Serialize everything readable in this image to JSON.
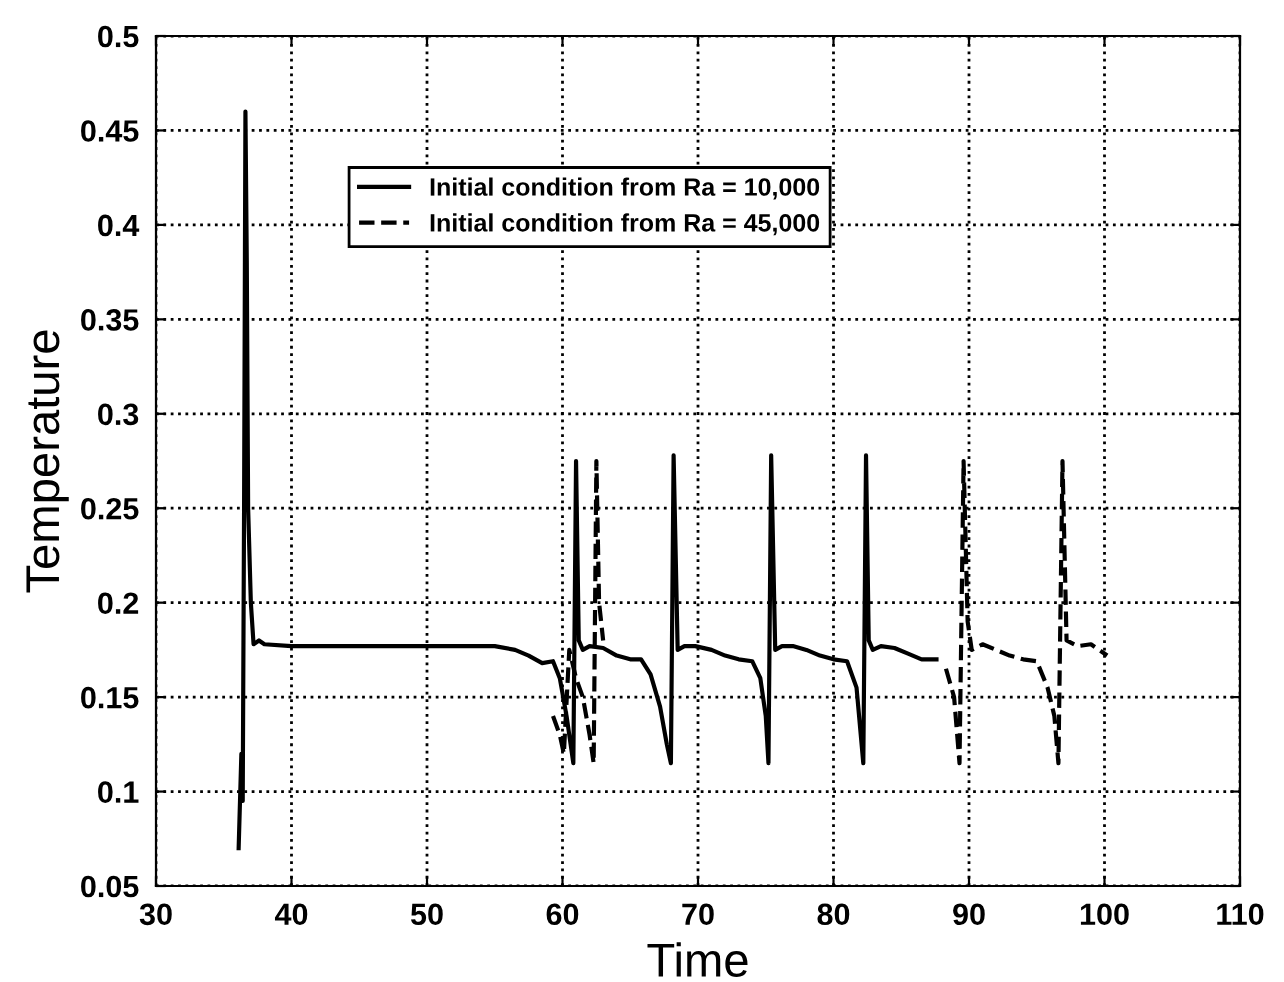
{
  "chart_data": {
    "type": "line",
    "xlabel": "Time",
    "ylabel": "Temperature",
    "xlim": [
      30,
      110
    ],
    "xticks": [
      30,
      40,
      50,
      60,
      70,
      80,
      90,
      100,
      110
    ],
    "ylim": [
      0.05,
      0.5
    ],
    "yticks": [
      0.05,
      0.1,
      0.15,
      0.2,
      0.25,
      0.3,
      0.35,
      0.4,
      0.45,
      0.5
    ],
    "grid": true,
    "legend": "top center",
    "marker": "none",
    "series": [
      {
        "name": "Initial condition from Ra = 10,000",
        "color": "#000000",
        "line_style": "solid",
        "x": [
          36.1,
          36.3,
          36.4,
          36.5,
          36.6,
          36.7,
          36.8,
          37.0,
          37.2,
          37.6,
          38.0,
          40,
          45,
          50,
          55,
          56.5,
          57.5,
          58.5,
          59.3,
          59.8,
          60.3,
          60.8,
          61.0,
          61.2,
          61.5,
          62.0,
          63.0,
          64.0,
          65.0,
          65.8,
          66.5,
          67.2,
          67.7,
          68.0,
          68.2,
          68.5,
          69.0,
          69.8,
          71.0,
          72.0,
          73.0,
          74.0,
          74.6,
          75.0,
          75.2,
          75.4,
          75.7,
          76.2,
          77.0,
          78.0,
          79.0,
          80.0,
          81.0,
          81.7,
          82.2,
          82.4,
          82.6,
          82.9,
          83.5,
          84.5,
          85.5,
          86.5,
          87.6
        ],
        "values": [
          0.07,
          0.12,
          0.095,
          0.25,
          0.46,
          0.38,
          0.25,
          0.2,
          0.178,
          0.18,
          0.178,
          0.177,
          0.177,
          0.177,
          0.177,
          0.175,
          0.172,
          0.168,
          0.169,
          0.16,
          0.14,
          0.115,
          0.275,
          0.18,
          0.175,
          0.177,
          0.176,
          0.172,
          0.17,
          0.17,
          0.162,
          0.145,
          0.125,
          0.115,
          0.278,
          0.175,
          0.177,
          0.177,
          0.175,
          0.172,
          0.17,
          0.169,
          0.16,
          0.14,
          0.115,
          0.278,
          0.175,
          0.177,
          0.177,
          0.175,
          0.172,
          0.17,
          0.169,
          0.155,
          0.115,
          0.278,
          0.18,
          0.175,
          0.177,
          0.176,
          0.173,
          0.17,
          0.17
        ]
      },
      {
        "name": "Initial condition from Ra = 45,000",
        "color": "#000000",
        "line_style": "dashed",
        "x": [
          59.3,
          59.8,
          60.1,
          60.5,
          61.0,
          61.5,
          62.0,
          62.3,
          62.5,
          62.7,
          63.0,
          87.6,
          88.3,
          88.9,
          89.3,
          89.6,
          89.9,
          90.2,
          91.0,
          92.0,
          93.0,
          94.0,
          95.0,
          95.8,
          96.3,
          96.6,
          96.9,
          97.2,
          98.0,
          99.0,
          100.2
        ],
        "values": [
          0.14,
          0.13,
          0.12,
          0.175,
          0.16,
          0.15,
          0.13,
          0.115,
          0.275,
          0.2,
          0.18,
          null,
          0.165,
          0.15,
          0.115,
          0.275,
          0.19,
          0.175,
          0.178,
          0.175,
          0.172,
          0.17,
          0.169,
          0.155,
          0.14,
          0.115,
          0.275,
          0.18,
          0.177,
          0.178,
          0.172
        ]
      }
    ]
  }
}
